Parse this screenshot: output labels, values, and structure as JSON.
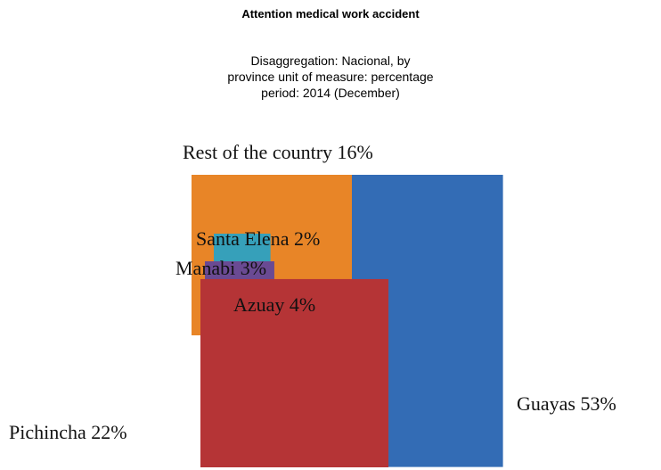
{
  "chart_data": {
    "type": "square",
    "title": "Attention medical work accident",
    "subtitle": [
      "Disaggregation: Nacional, by",
      "province unit of measure: percentage",
      "period: 2014 (December)"
    ],
    "categories": [
      "Guayas",
      "Pichincha",
      "Azuay",
      "Manabi",
      "Santa Elena",
      "Rest of the country"
    ],
    "values": [
      53,
      22,
      4,
      3,
      2,
      16
    ],
    "value_labels": [
      "53%",
      "22%",
      "4%",
      "3%",
      "2%",
      "16%"
    ],
    "colors": [
      "#336cb5",
      "#b53436",
      "#7da238",
      "#6a4a93",
      "#36a0ba",
      "#e88527"
    ]
  }
}
